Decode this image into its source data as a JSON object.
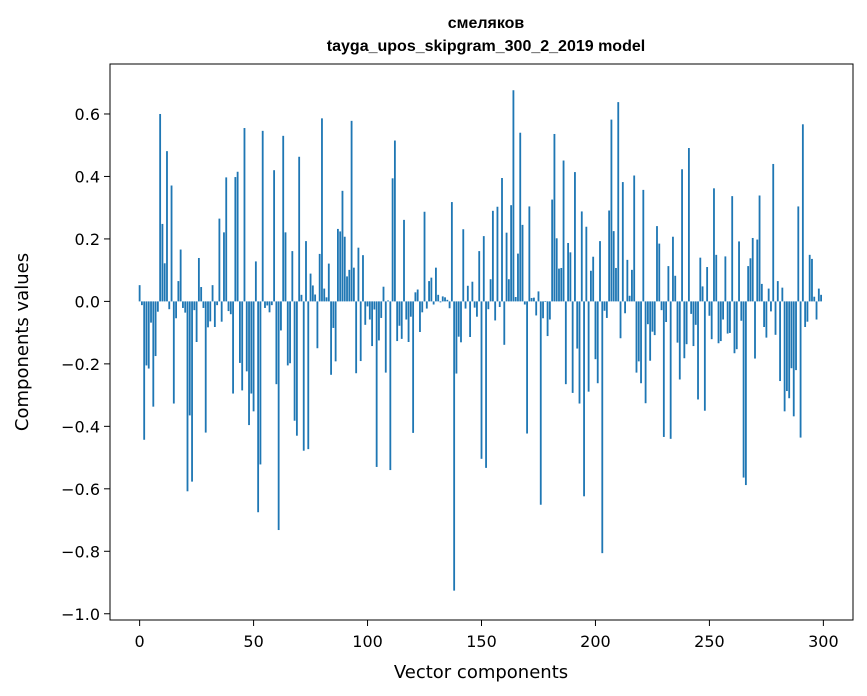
{
  "chart_data": {
    "type": "bar",
    "title": "смеляков",
    "subtitle": "tayga_upos_skipgram_300_2_2019 model",
    "xlabel": "Vector components",
    "ylabel": "Components values",
    "xlim": [
      -13,
      313
    ],
    "ylim": [
      -1.02,
      0.76
    ],
    "xticks": [
      0,
      50,
      100,
      150,
      200,
      250,
      300
    ],
    "xtick_labels": [
      "0",
      "50",
      "100",
      "150",
      "200",
      "250",
      "300"
    ],
    "yticks": [
      -1.0,
      -0.8,
      -0.6,
      -0.4,
      -0.2,
      0.0,
      0.2,
      0.4,
      0.6
    ],
    "ytick_labels": [
      "−1.0",
      "−0.8",
      "−0.6",
      "−0.4",
      "−0.2",
      "0.0",
      "0.2",
      "0.4",
      "0.6"
    ],
    "bar_color": "#1f77b4",
    "grid": false,
    "values": [
      0.052,
      -0.012,
      -0.443,
      -0.205,
      -0.215,
      -0.068,
      -0.337,
      -0.175,
      -0.033,
      0.6,
      0.248,
      0.122,
      0.481,
      -0.025,
      0.371,
      -0.327,
      -0.054,
      0.065,
      0.166,
      -0.021,
      -0.036,
      -0.608,
      -0.365,
      -0.577,
      -0.028,
      -0.13,
      0.139,
      0.046,
      -0.021,
      -0.42,
      -0.083,
      -0.064,
      0.052,
      -0.082,
      -0.012,
      0.265,
      -0.065,
      0.221,
      0.397,
      -0.031,
      -0.041,
      -0.295,
      0.398,
      0.415,
      -0.197,
      -0.285,
      0.555,
      -0.224,
      -0.396,
      -0.295,
      -0.352,
      0.128,
      -0.675,
      -0.522,
      0.546,
      -0.021,
      -0.013,
      -0.035,
      -0.012,
      0.42,
      -0.265,
      -0.732,
      -0.093,
      0.53,
      0.221,
      -0.205,
      -0.198,
      0.161,
      -0.382,
      -0.43,
      0.463,
      0.021,
      -0.478,
      0.193,
      -0.473,
      0.089,
      0.051,
      0.022,
      -0.15,
      0.152,
      0.586,
      0.041,
      0.013,
      0.121,
      -0.235,
      -0.085,
      -0.192,
      0.232,
      0.224,
      0.354,
      0.207,
      0.08,
      0.101,
      0.578,
      0.108,
      -0.23,
      0.172,
      -0.191,
      0.148,
      -0.075,
      -0.016,
      -0.058,
      -0.143,
      -0.026,
      -0.53,
      -0.125,
      -0.053,
      0.047,
      -0.228,
      0.003,
      -0.54,
      0.394,
      0.515,
      -0.127,
      -0.078,
      -0.12,
      0.261,
      -0.058,
      -0.13,
      -0.049,
      -0.421,
      0.029,
      0.038,
      -0.098,
      -0.035,
      0.287,
      -0.023,
      0.065,
      0.076,
      -0.01,
      0.108,
      0.021,
      -0.003,
      0.016,
      0.013,
      0.005,
      -0.022,
      0.318,
      -0.926,
      -0.231,
      -0.113,
      -0.131,
      0.231,
      -0.023,
      0.05,
      -0.114,
      0.063,
      -0.02,
      -0.049,
      0.161,
      -0.504,
      0.209,
      -0.533,
      -0.025,
      0.071,
      0.29,
      -0.061,
      0.303,
      -0.018,
      0.395,
      -0.139,
      0.22,
      0.071,
      0.308,
      0.676,
      0.014,
      0.153,
      0.54,
      0.245,
      -0.01,
      -0.423,
      0.304,
      0.011,
      0.012,
      -0.045,
      0.032,
      -0.651,
      -0.054,
      -0.002,
      -0.111,
      -0.058,
      0.326,
      0.536,
      0.202,
      0.105,
      0.107,
      0.451,
      -0.265,
      0.187,
      0.157,
      -0.293,
      0.414,
      -0.151,
      -0.327,
      0.288,
      -0.624,
      0.239,
      -0.289,
      0.098,
      0.143,
      -0.185,
      -0.262,
      0.193,
      -0.806,
      -0.03,
      -0.053,
      0.291,
      0.582,
      0.225,
      0.107,
      0.638,
      -0.118,
      0.382,
      -0.038,
      0.133,
      0.018,
      0.101,
      0.403,
      -0.228,
      -0.192,
      -0.262,
      0.357,
      -0.326,
      -0.073,
      -0.19,
      -0.097,
      -0.108,
      0.241,
      0.185,
      -0.028,
      -0.434,
      -0.066,
      0.113,
      -0.44,
      0.207,
      0.082,
      -0.132,
      -0.25,
      0.423,
      -0.182,
      -0.137,
      0.491,
      -0.04,
      -0.143,
      -0.075,
      -0.314,
      0.14,
      0.048,
      -0.35,
      0.11,
      -0.046,
      -0.121,
      0.362,
      0.149,
      -0.134,
      -0.127,
      -0.058,
      0.144,
      -0.103,
      -0.101,
      0.337,
      -0.166,
      -0.153,
      0.192,
      -0.062,
      -0.564,
      -0.588,
      0.113,
      0.138,
      0.203,
      -0.183,
      0.198,
      0.339,
      0.056,
      -0.082,
      -0.116,
      0.041,
      -0.032,
      0.44,
      -0.107,
      0.065,
      -0.255,
      0.044,
      -0.352,
      -0.287,
      -0.31,
      -0.214,
      -0.368,
      -0.22,
      0.304,
      -0.436,
      0.567,
      -0.082,
      -0.065,
      0.149,
      0.136,
      0.015,
      -0.058,
      0.041,
      0.021
    ]
  }
}
